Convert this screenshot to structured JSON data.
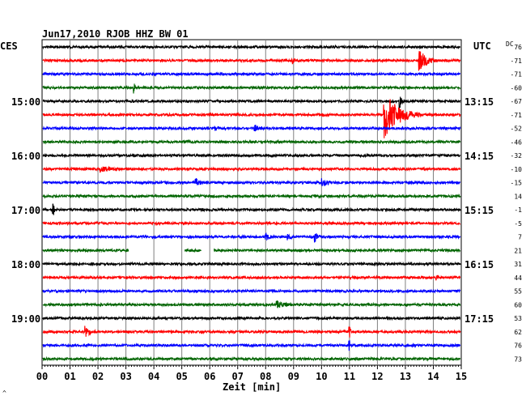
{
  "title": "Jun17,2010   RJOB HHZ BW 01",
  "left_tz": "CES",
  "right_tz": "UTC",
  "dc_label": "DC",
  "xlabel": "Zeit [min]",
  "corner_mark": "^",
  "colors": {
    "black": "#000000",
    "red": "#ff0000",
    "blue": "#0000ff",
    "green": "#006400",
    "grid": "#808080"
  },
  "chart_data": {
    "type": "line",
    "title": "Jun17,2010   RJOB HHZ BW 01",
    "xlabel": "Zeit [min]",
    "xlim": [
      0,
      15
    ],
    "x_ticks": [
      "00",
      "01",
      "02",
      "03",
      "04",
      "05",
      "06",
      "07",
      "08",
      "09",
      "10",
      "11",
      "12",
      "13",
      "14",
      "15"
    ],
    "left_time_labels": [
      {
        "row": 4,
        "text": "15:00"
      },
      {
        "row": 8,
        "text": "16:00"
      },
      {
        "row": 12,
        "text": "17:00"
      },
      {
        "row": 16,
        "text": "18:00"
      },
      {
        "row": 20,
        "text": "19:00"
      }
    ],
    "right_time_labels": [
      {
        "row": 4,
        "text": "13:15"
      },
      {
        "row": 8,
        "text": "14:15"
      },
      {
        "row": 12,
        "text": "15:15"
      },
      {
        "row": 16,
        "text": "16:15"
      },
      {
        "row": 20,
        "text": "17:15"
      }
    ],
    "dc_offsets": [
      "76",
      "-71",
      "-71",
      "-60",
      "-67",
      "-71",
      "-52",
      "-46",
      "-32",
      "-10",
      "-15",
      "14",
      "-1",
      "-5",
      "7",
      "21",
      "31",
      "44",
      "55",
      "60",
      "53",
      "62",
      "76",
      "73"
    ],
    "trace_colors": [
      "black",
      "red",
      "blue",
      "green"
    ],
    "events": [
      {
        "row": 1,
        "t": 13.5,
        "amp": 14,
        "dur": 0.6
      },
      {
        "row": 1,
        "t": 8.95,
        "amp": 4,
        "dur": 0.1
      },
      {
        "row": 3,
        "t": 3.3,
        "amp": 6,
        "dur": 0.05
      },
      {
        "row": 4,
        "t": 12.8,
        "amp": 9,
        "dur": 0.1
      },
      {
        "row": 5,
        "t": 12.25,
        "amp": 28,
        "dur": 1.3
      },
      {
        "row": 6,
        "t": 7.6,
        "amp": 4,
        "dur": 0.4
      },
      {
        "row": 6,
        "t": 6.2,
        "amp": 2,
        "dur": 0.3
      },
      {
        "row": 9,
        "t": 2.1,
        "amp": 3,
        "dur": 0.8
      },
      {
        "row": 10,
        "t": 5.5,
        "amp": 5,
        "dur": 0.3
      },
      {
        "row": 10,
        "t": 10.0,
        "amp": 4,
        "dur": 0.6
      },
      {
        "row": 12,
        "t": 0.4,
        "amp": 10,
        "dur": 0.05
      },
      {
        "row": 14,
        "t": 8.0,
        "amp": 4,
        "dur": 0.3
      },
      {
        "row": 14,
        "t": 8.8,
        "amp": 4,
        "dur": 0.2
      },
      {
        "row": 14,
        "t": 9.75,
        "amp": 7,
        "dur": 0.2
      },
      {
        "row": 17,
        "t": 14.1,
        "amp": 4,
        "dur": 0.1
      },
      {
        "row": 19,
        "t": 8.4,
        "amp": 4,
        "dur": 0.6
      },
      {
        "row": 21,
        "t": 1.55,
        "amp": 7,
        "dur": 0.4
      },
      {
        "row": 21,
        "t": 11.0,
        "amp": 9,
        "dur": 0.05
      },
      {
        "row": 22,
        "t": 11.0,
        "amp": 9,
        "dur": 0.05
      }
    ],
    "gaps": [
      {
        "row": 15,
        "t0": 3.1,
        "t1": 5.1
      },
      {
        "row": 15,
        "t0": 5.7,
        "t1": 6.15
      }
    ]
  }
}
